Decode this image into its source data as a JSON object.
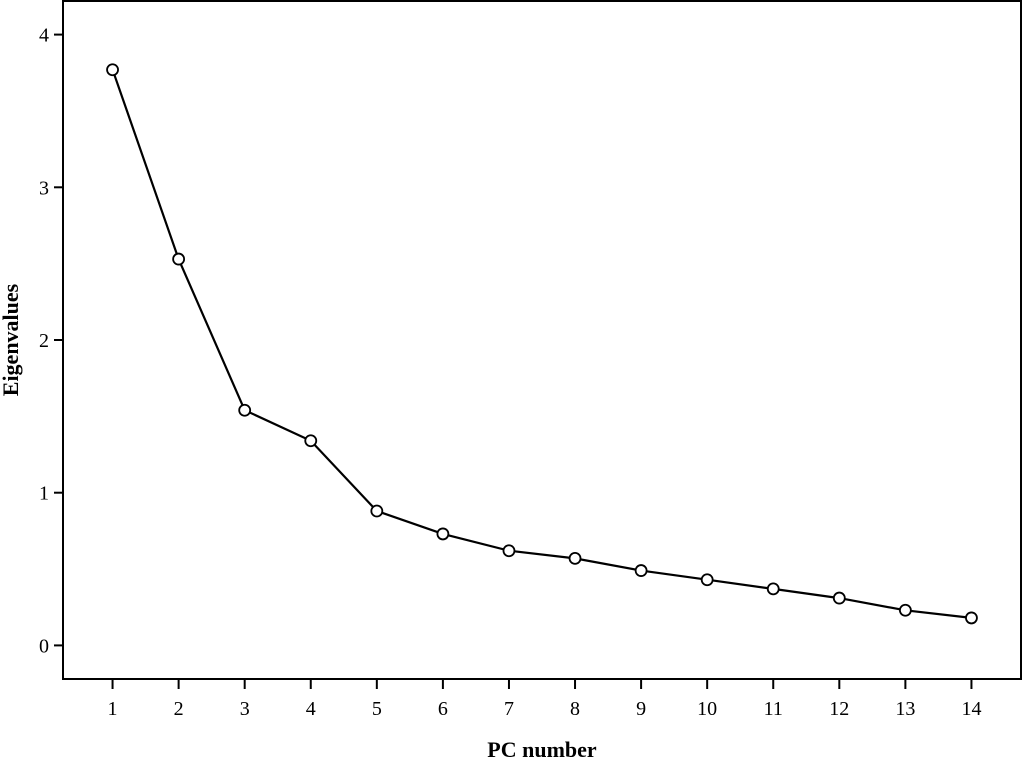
{
  "chart_data": {
    "type": "line",
    "title": "",
    "xlabel": "PC number",
    "ylabel": "Eigenvalues",
    "x": [
      1,
      2,
      3,
      4,
      5,
      6,
      7,
      8,
      9,
      10,
      11,
      12,
      13,
      14
    ],
    "xticks": [
      "1",
      "2",
      "3",
      "4",
      "5",
      "6",
      "7",
      "8",
      "9",
      "10",
      "11",
      "12",
      "13",
      "14"
    ],
    "yticks": [
      "0",
      "1",
      "2",
      "3",
      "4"
    ],
    "xlim": [
      0.25,
      14.75
    ],
    "ylim": [
      -0.22,
      4.22
    ],
    "grid": false,
    "legend": "none",
    "series": [
      {
        "values": [
          3.77,
          2.53,
          1.54,
          1.34,
          0.88,
          0.73,
          0.62,
          0.57,
          0.49,
          0.43,
          0.37,
          0.31,
          0.23,
          0.18
        ]
      }
    ],
    "line_color": "#000000",
    "marker": "open-circle"
  }
}
